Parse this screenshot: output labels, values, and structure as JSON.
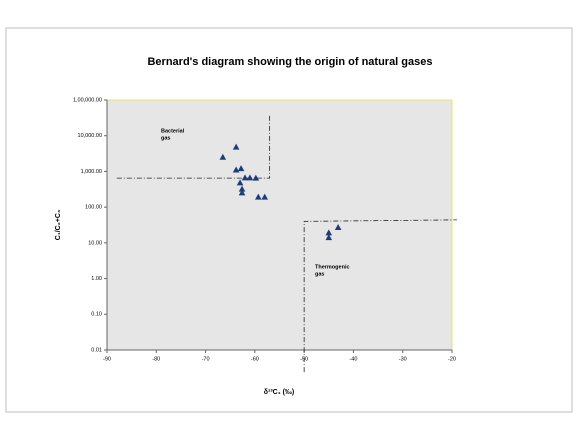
{
  "chart_data": {
    "type": "scatter",
    "title": "Bernard's diagram showing the origin of natural gases",
    "x_label": "δ¹³C₁ (‰)",
    "y_label": "C₁/C₂+C₃",
    "x": [
      -66.5,
      -63.8,
      -63.8,
      -62.8,
      -63,
      -62,
      -61,
      -62.6,
      -62.6,
      -59.8,
      -59.3,
      -58,
      -45,
      -45,
      -43.1
    ],
    "values": [
      2500,
      4800,
      1100,
      1200,
      480,
      660,
      660,
      320,
      250,
      650,
      190,
      190,
      19,
      14,
      27
    ],
    "color": "#1f3c78",
    "xlim": [
      -90,
      -20
    ],
    "xticks": [
      -90,
      -80,
      -70,
      -60,
      -50,
      -40,
      -30,
      -20
    ],
    "ylim": [
      0.01,
      100000
    ],
    "yticks": [
      {
        "value": 100000,
        "label": "1,00,000.00"
      },
      {
        "value": 10000,
        "label": "10,000.00"
      },
      {
        "value": 1000,
        "label": "1,000.00"
      },
      {
        "value": 100,
        "label": "100.00"
      },
      {
        "value": 10,
        "label": "10.00"
      },
      {
        "value": 1,
        "label": "1.00"
      },
      {
        "value": 0.1,
        "label": "0.10"
      },
      {
        "value": 0.01,
        "label": "0.01"
      }
    ],
    "log_y": true,
    "boundary_lines": [
      {
        "x": [
          -88,
          -57,
          -57
        ],
        "y": [
          650,
          650,
          40000
        ]
      },
      {
        "x": [
          -50,
          -50,
          -19
        ],
        "y": [
          0.0024,
          40,
          44
        ]
      }
    ],
    "annotations": [
      {
        "lines": [
          "Bacterial",
          "gas"
        ]
      },
      {
        "lines": [
          "Thermogenic",
          "gas"
        ]
      }
    ]
  }
}
